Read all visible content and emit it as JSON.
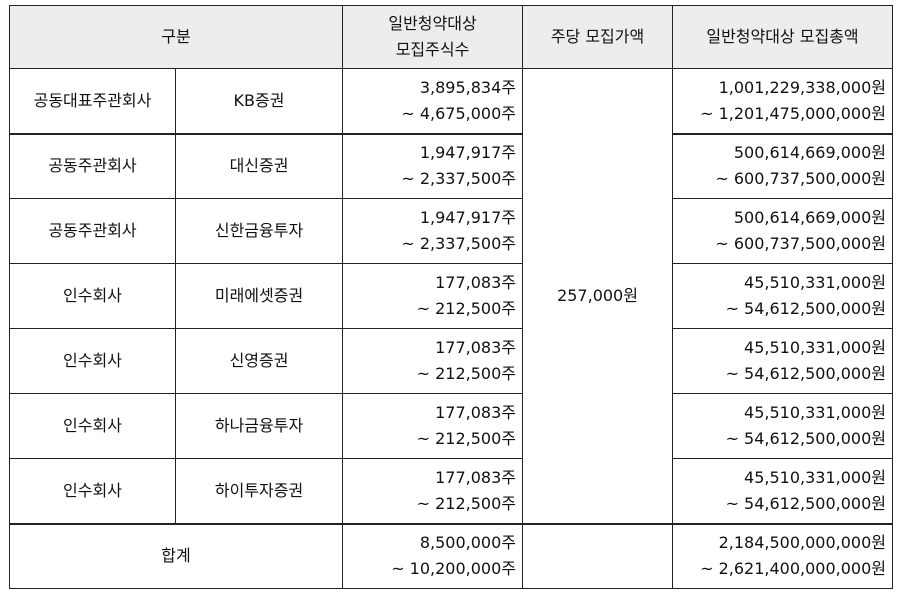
{
  "header": {
    "category": "구분",
    "shares_line1": "일반청약대상",
    "shares_line2": "모집주식수",
    "price": "주당 모집가액",
    "total": "일반청약대상 모집총액"
  },
  "price_per_share": "257,000원",
  "rows": [
    {
      "role": "공동대표주관회사",
      "firm": "KB증권",
      "shares_min": "3,895,834주",
      "shares_max": "~ 4,675,000주",
      "total_min": "1,001,229,338,000원",
      "total_max": "~ 1,201,475,000,000원"
    },
    {
      "role": "공동주관회사",
      "firm": "대신증권",
      "shares_min": "1,947,917주",
      "shares_max": "~ 2,337,500주",
      "total_min": "500,614,669,000원",
      "total_max": "~ 600,737,500,000원"
    },
    {
      "role": "공동주관회사",
      "firm": "신한금융투자",
      "shares_min": "1,947,917주",
      "shares_max": "~ 2,337,500주",
      "total_min": "500,614,669,000원",
      "total_max": "~ 600,737,500,000원"
    },
    {
      "role": "인수회사",
      "firm": "미래에셋증권",
      "shares_min": "177,083주",
      "shares_max": "~ 212,500주",
      "total_min": "45,510,331,000원",
      "total_max": "~ 54,612,500,000원"
    },
    {
      "role": "인수회사",
      "firm": "신영증권",
      "shares_min": "177,083주",
      "shares_max": "~ 212,500주",
      "total_min": "45,510,331,000원",
      "total_max": "~ 54,612,500,000원"
    },
    {
      "role": "인수회사",
      "firm": "하나금융투자",
      "shares_min": "177,083주",
      "shares_max": "~ 212,500주",
      "total_min": "45,510,331,000원",
      "total_max": "~ 54,612,500,000원"
    },
    {
      "role": "인수회사",
      "firm": "하이투자증권",
      "shares_min": "177,083주",
      "shares_max": "~ 212,500주",
      "total_min": "45,510,331,000원",
      "total_max": "~ 54,612,500,000원"
    }
  ],
  "sum": {
    "label": "합계",
    "shares_min": "8,500,000주",
    "shares_max": "~ 10,200,000주",
    "total_min": "2,184,500,000,000원",
    "total_max": "~ 2,621,400,000,000원"
  }
}
